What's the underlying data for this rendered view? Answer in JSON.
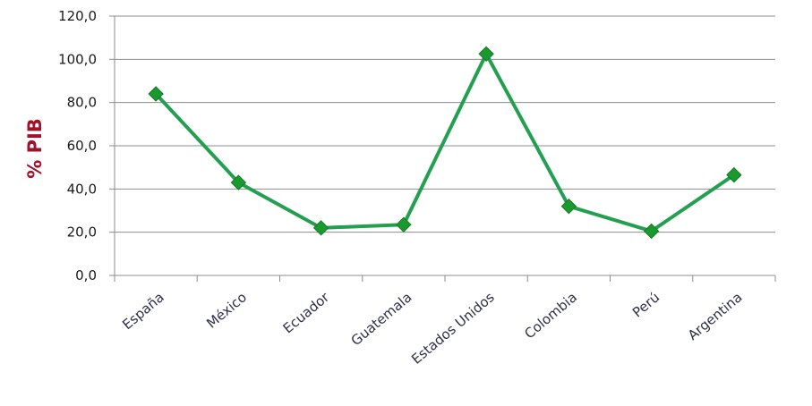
{
  "chart_data": {
    "type": "line",
    "title": "",
    "xlabel": "",
    "ylabel": "% PIB",
    "categories": [
      "España",
      "México",
      "Ecuador",
      "Guatemala",
      "Estados Unidos",
      "Colombia",
      "Perú",
      "Argentina"
    ],
    "series": [
      {
        "values": [
          84.0,
          43.0,
          22.0,
          23.5,
          102.5,
          32.0,
          20.5,
          46.5
        ]
      }
    ],
    "ylim": [
      0,
      120
    ],
    "y_ticks": [
      "0,0",
      "20,0",
      "40,0",
      "60,0",
      "80,0",
      "100,0",
      "120,0"
    ],
    "grid": true,
    "legend": "none",
    "colors": {
      "line": "#22a050",
      "marker": "#1a9a2e",
      "grid": "#8c8c8c",
      "axis_label": "#a0112a"
    }
  }
}
